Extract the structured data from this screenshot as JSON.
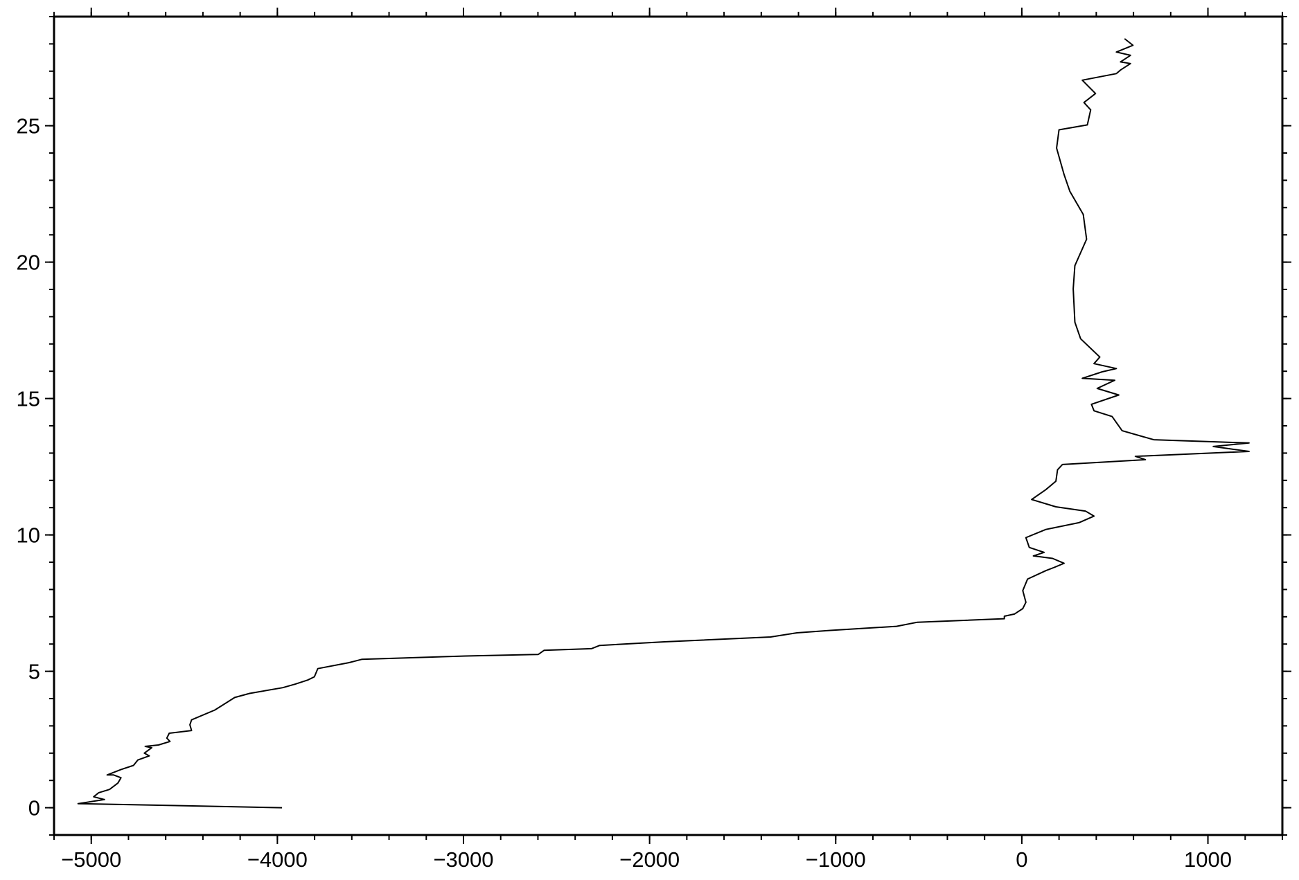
{
  "chart_data": {
    "type": "line",
    "color": "#000000",
    "x": [
      -3975,
      -5071,
      -4929,
      -4987,
      -4960,
      -4902,
      -4857,
      -4840,
      -4880,
      -4915,
      -4840,
      -4773,
      -4750,
      -4688,
      -4715,
      -4675,
      -4710,
      -4639,
      -4577,
      -4594,
      -4581,
      -4461,
      -4470,
      -4461,
      -4336,
      -4229,
      -4149,
      -3971,
      -3904,
      -3837,
      -3801,
      -3783,
      -3614,
      -3547,
      -3414,
      -2990,
      -2598,
      -2567,
      -2313,
      -2268,
      -1921,
      -1350,
      -1208,
      -1029,
      -673,
      -561,
      -94,
      -94,
      -40,
      5,
      22,
      5,
      31,
      129,
      174,
      227,
      165,
      62,
      120,
      40,
      22,
      129,
      307,
      388,
      343,
      183,
      53,
      129,
      183,
      192,
      218,
      664,
      610,
      1221,
      1029,
      1221,
      709,
      539,
      485,
      388,
      374,
      521,
      405,
      499,
      325,
      432,
      508,
      388,
      419,
      316,
      285,
      276,
      285,
      348,
      330,
      258,
      227,
      187,
      200,
      352,
      370,
      334,
      396,
      325,
      508,
      530,
      584,
      530,
      584,
      508,
      597,
      552
    ],
    "values": [
      0,
      0.15,
      0.3,
      0.4,
      0.55,
      0.67,
      0.9,
      1.1,
      1.2,
      1.2,
      1.4,
      1.55,
      1.75,
      1.9,
      2.0,
      2.2,
      2.25,
      2.3,
      2.43,
      2.55,
      2.73,
      2.83,
      3.04,
      3.22,
      3.58,
      4.04,
      4.19,
      4.4,
      4.53,
      4.68,
      4.8,
      5.1,
      5.32,
      5.44,
      5.47,
      5.56,
      5.62,
      5.77,
      5.83,
      5.95,
      6.08,
      6.26,
      6.41,
      6.5,
      6.65,
      6.8,
      6.93,
      7.02,
      7.1,
      7.3,
      7.53,
      7.96,
      8.38,
      8.69,
      8.81,
      8.96,
      9.14,
      9.23,
      9.36,
      9.54,
      9.9,
      10.2,
      10.45,
      10.69,
      10.87,
      11.03,
      11.3,
      11.66,
      11.97,
      12.39,
      12.58,
      12.76,
      12.88,
      13.06,
      13.24,
      13.37,
      13.49,
      13.82,
      14.34,
      14.55,
      14.79,
      15.13,
      15.37,
      15.67,
      15.74,
      15.98,
      16.1,
      16.28,
      16.52,
      17.19,
      17.8,
      19.02,
      19.87,
      20.84,
      21.75,
      22.6,
      23.21,
      24.18,
      24.85,
      25.03,
      25.58,
      25.85,
      26.18,
      26.67,
      26.91,
      27.04,
      27.28,
      27.34,
      27.58,
      27.7,
      27.95,
      28.19
    ],
    "xlim": [
      -5200,
      1400
    ],
    "ylim": [
      -1,
      29
    ],
    "xticks": [
      {
        "value": -5000,
        "label": "−5000"
      },
      {
        "value": -4000,
        "label": "−4000"
      },
      {
        "value": -3000,
        "label": "−3000"
      },
      {
        "value": -2000,
        "label": "−2000"
      },
      {
        "value": -1000,
        "label": "−1000"
      },
      0,
      1000
    ],
    "yticks": [
      0,
      5,
      10,
      15,
      20,
      25
    ],
    "xminor": 200,
    "yminor": 1
  }
}
